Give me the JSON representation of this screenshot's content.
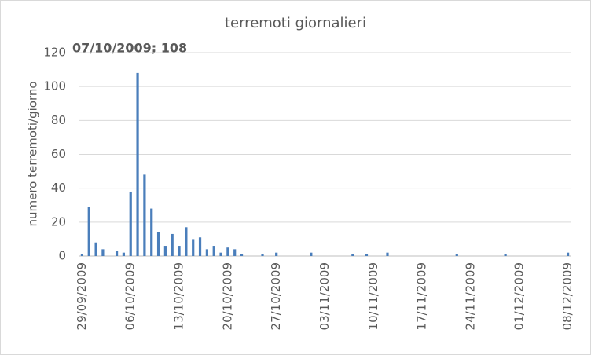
{
  "chart_data": {
    "type": "bar",
    "title": "terremoti giornalieri",
    "ylabel": "numero terremoti/giorno",
    "annotation": "07/10/2009; 108",
    "categories": [
      "29/09/2009",
      null,
      null,
      null,
      null,
      null,
      null,
      "06/10/2009",
      null,
      null,
      null,
      null,
      null,
      null,
      "13/10/2009",
      null,
      null,
      null,
      null,
      null,
      null,
      "20/10/2009",
      null,
      null,
      null,
      null,
      null,
      null,
      "27/10/2009",
      null,
      null,
      null,
      null,
      null,
      null,
      "03/11/2009",
      null,
      null,
      null,
      null,
      null,
      null,
      "10/11/2009",
      null,
      null,
      null,
      null,
      null,
      null,
      "17/11/2009",
      null,
      null,
      null,
      null,
      null,
      null,
      "24/11/2009",
      null,
      null,
      null,
      null,
      null,
      null,
      "01/12/2009",
      null,
      null,
      null,
      null,
      null,
      null,
      "08/12/2009"
    ],
    "values": [
      1,
      29,
      8,
      4,
      0,
      3,
      2,
      38,
      108,
      48,
      28,
      14,
      6,
      13,
      6,
      17,
      10,
      11,
      4,
      6,
      2,
      5,
      4,
      1,
      0,
      0,
      1,
      0,
      2,
      0,
      0,
      0,
      0,
      2,
      0,
      0,
      0,
      0,
      0,
      1,
      0,
      1,
      0,
      0,
      2,
      0,
      0,
      0,
      0,
      0,
      0,
      0,
      0,
      0,
      1,
      0,
      0,
      0,
      0,
      0,
      0,
      1,
      0,
      0,
      0,
      0,
      0,
      0,
      0,
      0,
      2
    ],
    "color": "#4a7ebb",
    "annotation_color": "#ff0000",
    "ylim": [
      0,
      120
    ],
    "yticks": [
      0,
      20,
      40,
      60,
      80,
      100,
      120
    ],
    "grid": true
  }
}
